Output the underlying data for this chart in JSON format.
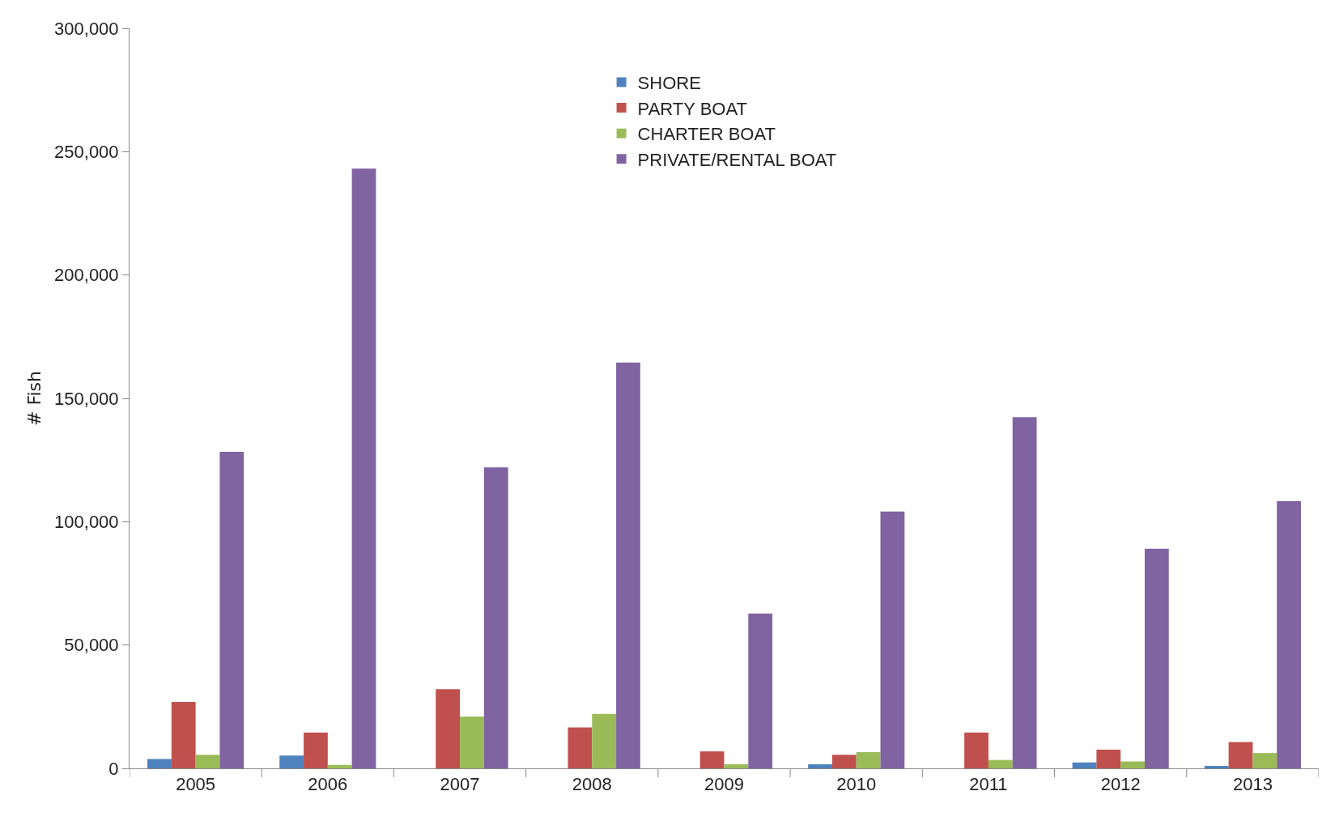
{
  "chart_data": {
    "type": "bar",
    "ylabel": "# Fish",
    "categories": [
      "2005",
      "2006",
      "2007",
      "2008",
      "2009",
      "2010",
      "2011",
      "2012",
      "2013"
    ],
    "series": [
      {
        "name": "SHORE",
        "color": "#4f81bd",
        "values": [
          3800,
          5200,
          0,
          0,
          0,
          1700,
          0,
          2400,
          1000
        ]
      },
      {
        "name": "PARTY BOAT",
        "color": "#c0504d",
        "values": [
          26900,
          14500,
          32100,
          16600,
          6900,
          5500,
          14500,
          7600,
          10700
        ]
      },
      {
        "name": "CHARTER BOAT",
        "color": "#9bbb59",
        "values": [
          5500,
          1400,
          21000,
          22100,
          1700,
          6600,
          3400,
          2800,
          6200
        ]
      },
      {
        "name": "PRIVATE/RENTAL BOAT",
        "color": "#8064a2",
        "values": [
          128300,
          243100,
          122000,
          164500,
          62800,
          104100,
          142400,
          89000,
          108300
        ]
      }
    ],
    "ylim": [
      0,
      300000
    ],
    "yticks": [
      {
        "value": 0,
        "label": "0"
      },
      {
        "value": 50000,
        "label": "50,000"
      },
      {
        "value": 100000,
        "label": "100,000"
      },
      {
        "value": 150000,
        "label": "150,000"
      },
      {
        "value": 200000,
        "label": "200,000"
      },
      {
        "value": 250000,
        "label": "250,000"
      },
      {
        "value": 300000,
        "label": "300,000"
      }
    ],
    "legend": "top"
  }
}
